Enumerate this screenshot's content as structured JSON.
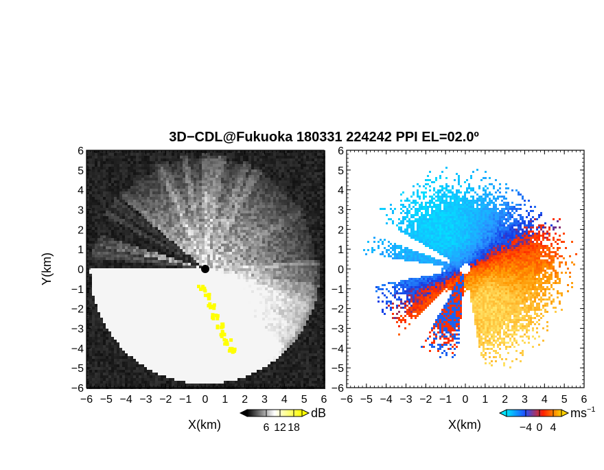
{
  "title": "3D−CDL@Fukuoka 180331 224242 PPI EL=02.0º",
  "panels": [
    {
      "id": "reflectivity",
      "xlabel": "X(km)",
      "ylabel": "Y(km)",
      "xlim": [
        -6,
        6
      ],
      "ylim": [
        -6,
        6
      ],
      "xticks": [
        -6,
        -5,
        -4,
        -3,
        -2,
        -1,
        0,
        1,
        2,
        3,
        4,
        5,
        6
      ],
      "yticks": [
        -6,
        -5,
        -4,
        -3,
        -2,
        -1,
        0,
        1,
        2,
        3,
        4,
        5,
        6
      ],
      "xtick_labels": [
        "−6",
        "−5",
        "−4",
        "−3",
        "−2",
        "−1",
        "0",
        "1",
        "2",
        "3",
        "4",
        "5",
        "6"
      ],
      "ytick_labels": [
        "−6",
        "−5",
        "−4",
        "−3",
        "−2",
        "−1",
        "0",
        "1",
        "2",
        "3",
        "4",
        "5",
        "6"
      ],
      "colorbar": {
        "unit": "dB",
        "ticks": [
          "6",
          "12",
          "18"
        ],
        "colors": [
          "#000000",
          "#ffffff",
          "#ffff00"
        ]
      }
    },
    {
      "id": "doppler-velocity",
      "xlabel": "X(km)",
      "ylabel": "",
      "xlim": [
        -6,
        6
      ],
      "ylim": [
        -6,
        6
      ],
      "xticks": [
        -6,
        -5,
        -4,
        -3,
        -2,
        -1,
        0,
        1,
        2,
        3,
        4,
        5,
        6
      ],
      "yticks": [
        -6,
        -5,
        -4,
        -3,
        -2,
        -1,
        0,
        1,
        2,
        3,
        4,
        5,
        6
      ],
      "xtick_labels": [
        "−6",
        "−5",
        "−4",
        "−3",
        "−2",
        "−1",
        "0",
        "1",
        "2",
        "3",
        "4",
        "5",
        "6"
      ],
      "ytick_labels": [
        "−6",
        "−5",
        "−4",
        "−3",
        "−2",
        "−1",
        "0",
        "1",
        "2",
        "3",
        "4",
        "5",
        "6"
      ],
      "colorbar": {
        "unit": "ms",
        "unit_sup": "−1",
        "ticks": [
          "−4",
          "0",
          "4"
        ],
        "colors": [
          "#00e5ff",
          "#1e50ff",
          "#ff2000",
          "#ffd000"
        ]
      }
    }
  ],
  "chart_data": [
    {
      "type": "heatmap",
      "title": "3D−CDL@Fukuoka 180331 224242 PPI EL=02.0º",
      "xlabel": "X(km)",
      "ylabel": "Y(km)",
      "xlim": [
        -6,
        6
      ],
      "ylim": [
        -6,
        6
      ],
      "field": "reflectivity",
      "unit": "dB",
      "colorbar_ticks": [
        6,
        12,
        18
      ]
    },
    {
      "type": "heatmap",
      "xlabel": "X(km)",
      "xlim": [
        -6,
        6
      ],
      "ylim": [
        -6,
        6
      ],
      "field": "doppler velocity",
      "unit": "ms−1",
      "colorbar_ticks": [
        -4,
        0,
        4
      ]
    }
  ]
}
